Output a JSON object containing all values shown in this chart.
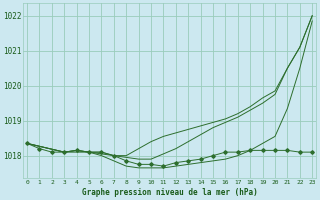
{
  "title": "Graphe pression niveau de la mer (hPa)",
  "bg_color": "#cce8f0",
  "grid_color": "#99ccbb",
  "line_color": "#2d6e2d",
  "xlim": [
    -0.3,
    23.3
  ],
  "ylim": [
    1017.35,
    1022.35
  ],
  "yticks": [
    1018,
    1019,
    1020,
    1021,
    1022
  ],
  "xtick_labels": [
    "0",
    "1",
    "2",
    "3",
    "4",
    "5",
    "6",
    "7",
    "8",
    "9",
    "10",
    "11",
    "12",
    "13",
    "14",
    "15",
    "16",
    "17",
    "18",
    "19",
    "20",
    "21",
    "22",
    "23"
  ],
  "series": [
    {
      "x": [
        0,
        1,
        2,
        3,
        4,
        5,
        6,
        7,
        8,
        9,
        10,
        11,
        12,
        13,
        14,
        15,
        16,
        17,
        18,
        19,
        20,
        21,
        22,
        23
      ],
      "y": [
        1018.35,
        1018.2,
        1018.1,
        1018.1,
        1018.15,
        1018.1,
        1018.1,
        1018.0,
        1017.85,
        1017.75,
        1017.75,
        1017.7,
        1017.8,
        1017.85,
        1017.9,
        1018.0,
        1018.1,
        1018.1,
        1018.15,
        1018.15,
        1018.15,
        1018.15,
        1018.1,
        1018.1
      ],
      "markers": true
    },
    {
      "x": [
        0,
        3,
        4,
        5,
        6,
        7,
        8,
        9,
        10,
        11,
        12,
        13,
        14,
        15,
        16,
        17,
        18,
        19,
        20,
        21,
        22,
        23
      ],
      "y": [
        1018.35,
        1018.1,
        1018.15,
        1018.1,
        1018.1,
        1018.0,
        1018.0,
        1018.2,
        1018.4,
        1018.55,
        1018.65,
        1018.75,
        1018.85,
        1018.95,
        1019.05,
        1019.2,
        1019.4,
        1019.65,
        1019.85,
        1020.5,
        1021.1,
        1022.0
      ],
      "markers": false
    },
    {
      "x": [
        0,
        3,
        4,
        5,
        6,
        7,
        8,
        9,
        10,
        11,
        12,
        13,
        14,
        15,
        16,
        17,
        18,
        19,
        20,
        21,
        22,
        23
      ],
      "y": [
        1018.35,
        1018.1,
        1018.15,
        1018.1,
        1018.05,
        1018.0,
        1017.95,
        1017.9,
        1017.9,
        1018.05,
        1018.2,
        1018.4,
        1018.6,
        1018.8,
        1018.95,
        1019.1,
        1019.3,
        1019.5,
        1019.75,
        1020.5,
        1021.1,
        1022.0
      ],
      "markers": false
    },
    {
      "x": [
        0,
        3,
        4,
        5,
        6,
        7,
        8,
        9,
        10,
        11,
        12,
        13,
        14,
        15,
        16,
        17,
        18,
        19,
        20,
        21,
        22,
        23
      ],
      "y": [
        1018.35,
        1018.1,
        1018.1,
        1018.1,
        1018.0,
        1017.85,
        1017.7,
        1017.65,
        1017.65,
        1017.65,
        1017.7,
        1017.75,
        1017.8,
        1017.85,
        1017.9,
        1018.0,
        1018.15,
        1018.35,
        1018.55,
        1019.35,
        1020.5,
        1021.85
      ],
      "markers": false
    }
  ]
}
